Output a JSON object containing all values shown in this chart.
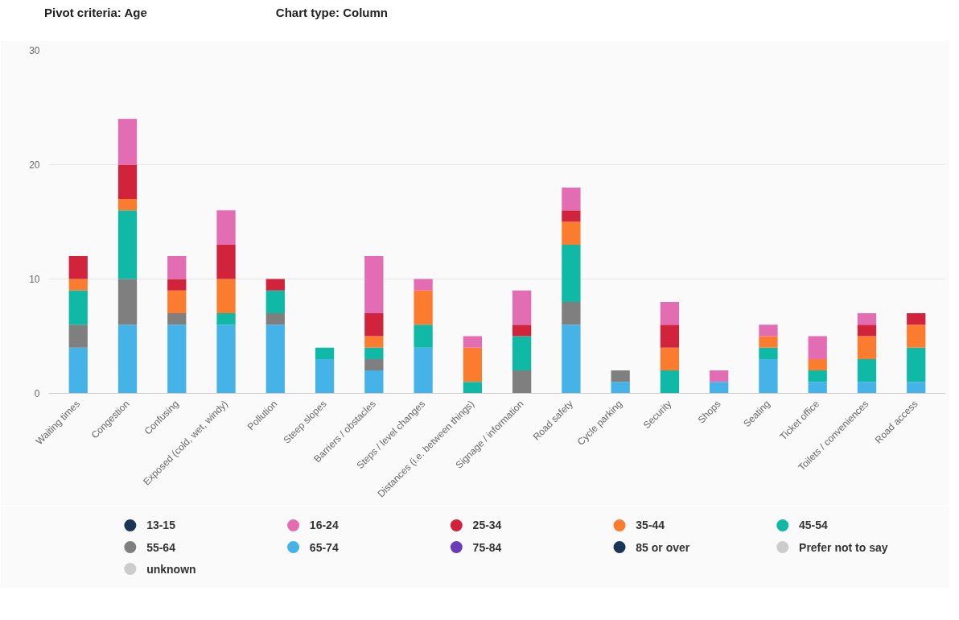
{
  "chart_data": {
    "type": "bar",
    "stacked": true,
    "annotations": [
      "Pivot criteria: Age",
      "Chart type: Column"
    ],
    "categories": [
      "Waiting times",
      "Congestion",
      "Confusing",
      "Exposed (cold, wet, windy)",
      "Pollution",
      "Steep slopes",
      "Barriers / obstacles",
      "Steps / level changes",
      "Distances (i.e. between things)",
      "Signage / information",
      "Road safety",
      "Cycle parking",
      "Security",
      "Shops",
      "Seating",
      "Ticket office",
      "Toilets / conveniences",
      "Road access"
    ],
    "series": [
      {
        "name": "unknown",
        "color": "#cccccc",
        "values": [
          null,
          null,
          null,
          null,
          null,
          null,
          null,
          null,
          null,
          null,
          null,
          null,
          null,
          null,
          null,
          null,
          null,
          null
        ]
      },
      {
        "name": "Prefer not to say",
        "color": "#cccccc",
        "values": [
          null,
          null,
          null,
          null,
          null,
          null,
          null,
          null,
          null,
          null,
          null,
          null,
          null,
          null,
          null,
          null,
          null,
          null
        ]
      },
      {
        "name": "85 or over",
        "color": "#1c3557",
        "values": [
          null,
          null,
          null,
          null,
          null,
          null,
          null,
          null,
          null,
          null,
          null,
          null,
          null,
          null,
          null,
          null,
          null,
          null
        ]
      },
      {
        "name": "75-84",
        "color": "#6a3db6",
        "values": [
          null,
          null,
          null,
          null,
          null,
          null,
          null,
          null,
          null,
          null,
          null,
          null,
          null,
          null,
          null,
          null,
          null,
          null
        ]
      },
      {
        "name": "65-74",
        "color": "#45b3e8",
        "values": [
          4,
          6,
          6,
          6,
          6,
          3,
          2,
          4,
          0,
          0,
          6,
          1,
          0,
          1,
          3,
          1,
          1,
          1
        ]
      },
      {
        "name": "55-64",
        "color": "#7f7f7f",
        "values": [
          2,
          4,
          1,
          0,
          1,
          0,
          1,
          0,
          0,
          2,
          2,
          1,
          0,
          0,
          0,
          0,
          0,
          0
        ]
      },
      {
        "name": "45-54",
        "color": "#10b9a5",
        "values": [
          3,
          6,
          0,
          1,
          2,
          1,
          1,
          2,
          1,
          3,
          5,
          0,
          2,
          0,
          1,
          1,
          2,
          3
        ]
      },
      {
        "name": "35-44",
        "color": "#fb7c2f",
        "values": [
          1,
          1,
          2,
          3,
          0,
          0,
          1,
          3,
          3,
          0,
          2,
          0,
          2,
          0,
          1,
          1,
          2,
          2
        ]
      },
      {
        "name": "25-34",
        "color": "#d1243c",
        "values": [
          2,
          3,
          1,
          3,
          1,
          0,
          2,
          0,
          0,
          1,
          1,
          0,
          2,
          0,
          0,
          0,
          1,
          1
        ]
      },
      {
        "name": "16-24",
        "color": "#e36db3",
        "values": [
          0,
          4,
          2,
          3,
          0,
          0,
          5,
          1,
          1,
          3,
          2,
          0,
          2,
          1,
          1,
          2,
          1,
          0
        ]
      },
      {
        "name": "13-15",
        "color": "#1c3557",
        "values": [
          null,
          null,
          null,
          null,
          null,
          null,
          null,
          null,
          null,
          null,
          null,
          null,
          null,
          null,
          null,
          null,
          null,
          null
        ]
      }
    ],
    "ylim": [
      0,
      30
    ],
    "yticks": [
      0,
      10,
      20,
      30
    ],
    "grid": "y",
    "legend": "bottom"
  }
}
